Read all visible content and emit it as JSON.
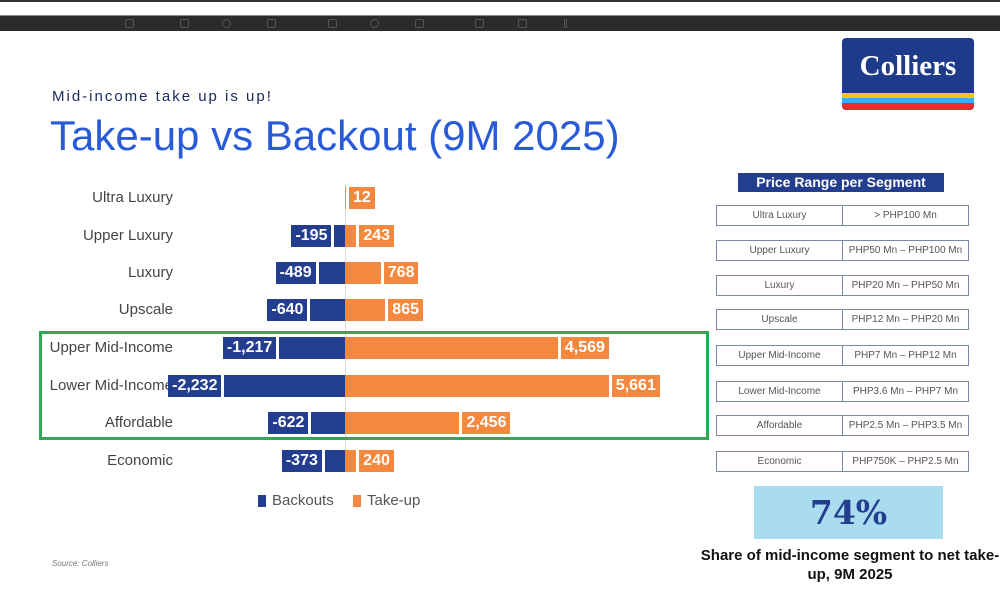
{
  "logo": {
    "text": "Colliers"
  },
  "header": {
    "subtitle": "Mid-income take up is up!",
    "title": "Take-up vs Backout (9M 2025)"
  },
  "chart_data": {
    "type": "bar",
    "orientation": "horizontal-diverging",
    "title": "Take-up vs Backout (9M 2025)",
    "categories": [
      "Ultra Luxury",
      "Upper Luxury",
      "Luxury",
      "Upscale",
      "Upper Mid-Income",
      "Lower Mid-Income",
      "Affordable",
      "Economic"
    ],
    "series": [
      {
        "name": "Backouts",
        "color": "#233d8f",
        "values": [
          0,
          -195,
          -489,
          -640,
          -1217,
          -2232,
          -622,
          -373
        ],
        "labels": [
          "",
          "-195",
          "-489",
          "-640",
          "-1,217",
          "-2,232",
          "-622",
          "-373"
        ]
      },
      {
        "name": "Take-up",
        "color": "#f5883f",
        "values": [
          12,
          243,
          768,
          865,
          4569,
          5661,
          2456,
          240
        ],
        "labels": [
          "12",
          "243",
          "768",
          "865",
          "4,569",
          "5,661",
          "2,456",
          "240"
        ]
      }
    ],
    "legend": "bottom",
    "highlight": [
      "Upper Mid-Income",
      "Lower Mid-Income",
      "Affordable"
    ]
  },
  "source": "Source: Colliers",
  "price_range": {
    "title": "Price Range per Segment",
    "rows": [
      {
        "segment": "Ultra Luxury",
        "range": "> PHP100 Mn"
      },
      {
        "segment": "Upper Luxury",
        "range": "PHP50 Mn – PHP100 Mn"
      },
      {
        "segment": "Luxury",
        "range": "PHP20 Mn – PHP50 Mn"
      },
      {
        "segment": "Upscale",
        "range": "PHP12 Mn – PHP20 Mn"
      },
      {
        "segment": "Upper Mid-Income",
        "range": "PHP7 Mn – PHP12 Mn"
      },
      {
        "segment": "Lower Mid-Income",
        "range": "PHP3.6 Mn – PHP7 Mn"
      },
      {
        "segment": "Affordable",
        "range": "PHP2.5 Mn – PHP3.5 Mn"
      },
      {
        "segment": "Economic",
        "range": "PHP750K – PHP2.5 Mn"
      }
    ]
  },
  "kpi": {
    "value": "74%",
    "caption": "Share of mid-income segment to net take-up, 9M 2025"
  }
}
